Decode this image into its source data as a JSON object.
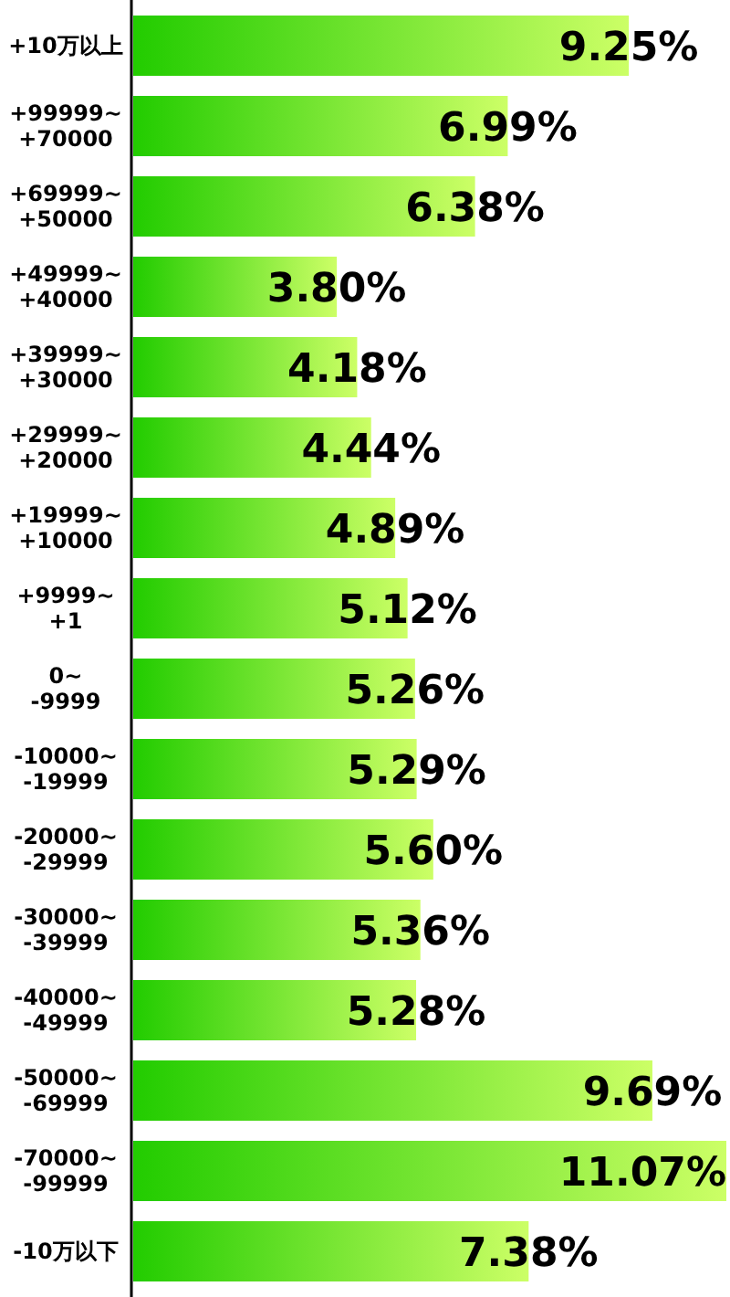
{
  "chart_data": {
    "type": "bar",
    "orientation": "horizontal",
    "categories": [
      "+10万以上",
      "+99999~\n+70000",
      "+69999~\n+50000",
      "+49999~\n+40000",
      "+39999~\n+30000",
      "+29999~\n+20000",
      "+19999~\n+10000",
      "+9999~\n+1",
      "0~\n-9999",
      "-10000~\n-19999",
      "-20000~\n-29999",
      "-30000~\n-39999",
      "-40000~\n-49999",
      "-50000~\n-69999",
      "-70000~\n-99999",
      "-10万以下"
    ],
    "values": [
      9.25,
      6.99,
      6.38,
      3.8,
      4.18,
      4.44,
      4.89,
      5.12,
      5.26,
      5.29,
      5.6,
      5.36,
      5.28,
      9.69,
      11.07,
      7.38
    ],
    "value_labels": [
      "9.25%",
      "6.99%",
      "6.38%",
      "3.80%",
      "4.18%",
      "4.44%",
      "4.89%",
      "5.12%",
      "5.26%",
      "5.29%",
      "5.60%",
      "5.36%",
      "5.28%",
      "9.69%",
      "11.07%",
      "7.38%"
    ],
    "color": "#22cc00"
  }
}
